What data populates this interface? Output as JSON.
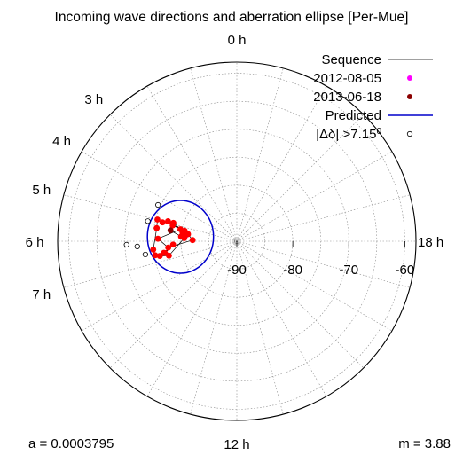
{
  "chart_data": {
    "type": "scatter",
    "subtype": "polar",
    "title": "Incoming wave directions and aberration ellipse [Per-Mue]",
    "hour_labels": [
      {
        "label": "0 h",
        "hour": 0
      },
      {
        "label": "3 h",
        "hour": 3
      },
      {
        "label": "4 h",
        "hour": 4
      },
      {
        "label": "5 h",
        "hour": 5
      },
      {
        "label": "6 h",
        "hour": 6
      },
      {
        "label": "7 h",
        "hour": 7
      },
      {
        "label": "12 h",
        "hour": 12
      },
      {
        "label": "18 h",
        "hour": 18
      }
    ],
    "radial_ticks": [
      {
        "label": "-90",
        "value": -90
      },
      {
        "label": "-80",
        "value": -80
      },
      {
        "label": "-70",
        "value": -70
      },
      {
        "label": "-60",
        "value": -60
      }
    ],
    "radial_range": [
      -90,
      -58
    ],
    "grid": true,
    "legend_position": "top-right",
    "legend": [
      {
        "label": "Sequence",
        "kind": "line",
        "color": "#000000"
      },
      {
        "label": "2012-08-05",
        "kind": "point",
        "color": "#ff00ff"
      },
      {
        "label": "2013-06-18",
        "kind": "point",
        "color": "#8b0000"
      },
      {
        "label": "Predicted",
        "kind": "line",
        "color": "#0000cc"
      },
      {
        "label": "|Δδ| >7.15",
        "sup": "0",
        "kind": "open-point",
        "color": "#000000"
      }
    ],
    "annotations": {
      "a": "a = 0.0003795",
      "m": "m = 3.88"
    },
    "colors": {
      "point": "#ff0000",
      "start": "#ff00ff",
      "end": "#8b0000",
      "ellipse": "#0000cc",
      "outlier": "#000000",
      "sequence": "#000000"
    },
    "predicted_ellipse": {
      "center_hour": 5.7,
      "center_dec": -79.9,
      "semi_x_deg": 5.9,
      "semi_y_deg": 6.5
    },
    "sequence": [
      {
        "hour": 5.57,
        "dec": -80.8,
        "kind": "start"
      },
      {
        "hour": 5.45,
        "dec": -81.2,
        "kind": "point"
      },
      {
        "hour": 5.9,
        "dec": -82.1,
        "kind": "point"
      },
      {
        "hour": 6.35,
        "dec": -77.7,
        "kind": "point"
      },
      {
        "hour": 5.88,
        "dec": -75.9,
        "kind": "point"
      },
      {
        "hour": 5.2,
        "dec": -79.7,
        "kind": "point"
      },
      {
        "hour": 4.92,
        "dec": -77.2,
        "kind": "point"
      },
      {
        "hour": 5.05,
        "dec": -76.3,
        "kind": "point"
      },
      {
        "hour": 4.98,
        "dec": -75.3,
        "kind": "point"
      },
      {
        "hour": 5.38,
        "dec": -75.5,
        "kind": "point"
      },
      {
        "hour": 6.38,
        "dec": -75.0,
        "kind": "point"
      },
      {
        "hour": 6.65,
        "dec": -75.2,
        "kind": "point"
      },
      {
        "hour": 6.6,
        "dec": -76.8,
        "kind": "point"
      },
      {
        "hour": 6.2,
        "dec": -78.6,
        "kind": "point"
      },
      {
        "hour": 6.62,
        "dec": -77.0,
        "kind": "point"
      },
      {
        "hour": 6.72,
        "dec": -76.0,
        "kind": "point"
      },
      {
        "hour": 6.8,
        "dec": -77.6,
        "kind": "point"
      },
      {
        "hour": 5.77,
        "dec": -80.6,
        "kind": "point"
      },
      {
        "hour": 5.43,
        "dec": -80.2,
        "kind": "point"
      },
      {
        "hour": 5.25,
        "dec": -80.5,
        "kind": "point"
      },
      {
        "hour": 5.08,
        "dec": -78.2,
        "kind": "point"
      },
      {
        "hour": 4.92,
        "dec": -78.2,
        "kind": "point"
      },
      {
        "hour": 5.5,
        "dec": -80.9,
        "kind": "point"
      },
      {
        "hour": 5.68,
        "dec": -80.0,
        "kind": "point"
      },
      {
        "hour": 5.38,
        "dec": -78.0,
        "kind": "end"
      }
    ],
    "outliers": [
      {
        "hour": 4.35,
        "dec": -74.5
      },
      {
        "hour": 5.15,
        "dec": -73.7
      },
      {
        "hour": 6.12,
        "dec": -70.3
      },
      {
        "hour": 6.2,
        "dec": -72.2
      },
      {
        "hour": 6.55,
        "dec": -73.5
      }
    ]
  }
}
